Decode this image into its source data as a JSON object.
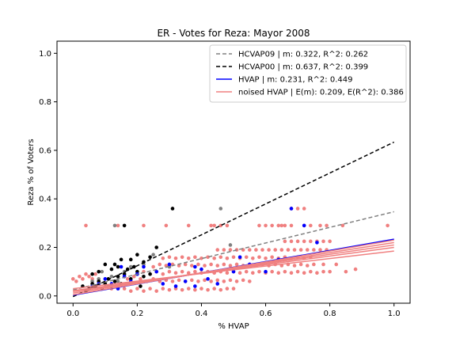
{
  "chart_data": {
    "type": "scatter",
    "title": "ER - Votes for Reza: Mayor 2008",
    "xlabel": "% HVAP",
    "ylabel": "Reza % of Voters",
    "xlim": [
      -0.05,
      1.05
    ],
    "ylim": [
      -0.03,
      1.05
    ],
    "xticks": [
      "0.0",
      "0.2",
      "0.4",
      "0.6",
      "0.8",
      "1.0"
    ],
    "yticks": [
      "0.0",
      "0.2",
      "0.4",
      "0.6",
      "0.8",
      "1.0"
    ],
    "xtick_values": [
      0.0,
      0.2,
      0.4,
      0.6,
      0.8,
      1.0
    ],
    "ytick_values": [
      0.0,
      0.2,
      0.4,
      0.6,
      0.8,
      1.0
    ],
    "grid": false,
    "legend_placement": "top-right",
    "legend": [
      {
        "label": "HCVAP09 | m: 0.322, R^2: 0.262",
        "color": "#808080",
        "style": "dashed"
      },
      {
        "label": "HCVAP00 | m: 0.637, R^2: 0.399",
        "color": "#000000",
        "style": "dashed"
      },
      {
        "label": "HVAP | m: 0.231, R^2: 0.449",
        "color": "#0000ff",
        "style": "solid"
      },
      {
        "label": "noised HVAP | E(m): 0.209, E(R^2): 0.386",
        "color": "#f08080",
        "style": "solid"
      }
    ],
    "lines": [
      {
        "name": "HCVAP09 | m: 0.322, R^2: 0.262",
        "color": "#808080",
        "style": "dashed",
        "x": [
          0.0,
          1.0
        ],
        "y": [
          0.025,
          0.347
        ]
      },
      {
        "name": "HCVAP00 | m: 0.637, R^2: 0.399",
        "color": "#000000",
        "style": "dashed",
        "x": [
          0.0,
          1.0
        ],
        "y": [
          -0.003,
          0.634
        ]
      },
      {
        "name": "HVAP | m: 0.231, R^2: 0.449",
        "color": "#0000ff",
        "style": "solid",
        "x": [
          0.0,
          1.0
        ],
        "y": [
          0.003,
          0.234
        ]
      },
      {
        "name": "noised HVAP 1",
        "color": "#f08080",
        "style": "solid",
        "x": [
          0.0,
          1.0
        ],
        "y": [
          0.005,
          0.23
        ]
      },
      {
        "name": "noised HVAP 2",
        "color": "#f08080",
        "style": "solid",
        "x": [
          0.0,
          1.0
        ],
        "y": [
          0.012,
          0.22
        ]
      },
      {
        "name": "noised HVAP 3",
        "color": "#f08080",
        "style": "solid",
        "x": [
          0.0,
          1.0
        ],
        "y": [
          0.018,
          0.21
        ]
      },
      {
        "name": "noised HVAP 4",
        "color": "#f08080",
        "style": "solid",
        "x": [
          0.0,
          1.0
        ],
        "y": [
          0.022,
          0.2
        ]
      },
      {
        "name": "noised HVAP 5",
        "color": "#f08080",
        "style": "solid",
        "x": [
          0.0,
          1.0
        ],
        "y": [
          0.03,
          0.185
        ]
      }
    ],
    "scatter_series": [
      {
        "name": "noised HVAP points",
        "color": "#f08080",
        "points": [
          [
            0.0,
            0.07
          ],
          [
            0.01,
            0.06
          ],
          [
            0.02,
            0.08
          ],
          [
            0.03,
            0.07
          ],
          [
            0.04,
            0.09
          ],
          [
            0.05,
            0.08
          ],
          [
            0.06,
            0.07
          ],
          [
            0.07,
            0.09
          ],
          [
            0.08,
            0.06
          ],
          [
            0.1,
            0.05
          ],
          [
            0.12,
            0.03
          ],
          [
            0.14,
            0.04
          ],
          [
            0.16,
            0.03
          ],
          [
            0.18,
            0.02
          ],
          [
            0.2,
            0.03
          ],
          [
            0.22,
            0.02
          ],
          [
            0.24,
            0.03
          ],
          [
            0.26,
            0.02
          ],
          [
            0.28,
            0.03
          ],
          [
            0.3,
            0.025
          ],
          [
            0.32,
            0.03
          ],
          [
            0.34,
            0.025
          ],
          [
            0.36,
            0.03
          ],
          [
            0.38,
            0.025
          ],
          [
            0.4,
            0.03
          ],
          [
            0.42,
            0.025
          ],
          [
            0.44,
            0.03
          ],
          [
            0.46,
            0.025
          ],
          [
            0.48,
            0.03
          ],
          [
            0.5,
            0.03
          ],
          [
            0.17,
            0.07
          ],
          [
            0.19,
            0.08
          ],
          [
            0.21,
            0.07
          ],
          [
            0.23,
            0.06
          ],
          [
            0.25,
            0.07
          ],
          [
            0.27,
            0.06
          ],
          [
            0.29,
            0.065
          ],
          [
            0.31,
            0.06
          ],
          [
            0.33,
            0.065
          ],
          [
            0.35,
            0.06
          ],
          [
            0.37,
            0.065
          ],
          [
            0.39,
            0.06
          ],
          [
            0.41,
            0.065
          ],
          [
            0.43,
            0.06
          ],
          [
            0.45,
            0.065
          ],
          [
            0.47,
            0.06
          ],
          [
            0.49,
            0.065
          ],
          [
            0.51,
            0.06
          ],
          [
            0.53,
            0.065
          ],
          [
            0.55,
            0.06
          ],
          [
            0.2,
            0.09
          ],
          [
            0.22,
            0.1
          ],
          [
            0.24,
            0.09
          ],
          [
            0.26,
            0.1
          ],
          [
            0.28,
            0.09
          ],
          [
            0.3,
            0.1
          ],
          [
            0.32,
            0.095
          ],
          [
            0.34,
            0.1
          ],
          [
            0.36,
            0.095
          ],
          [
            0.38,
            0.1
          ],
          [
            0.4,
            0.095
          ],
          [
            0.42,
            0.1
          ],
          [
            0.44,
            0.095
          ],
          [
            0.46,
            0.1
          ],
          [
            0.48,
            0.095
          ],
          [
            0.5,
            0.1
          ],
          [
            0.52,
            0.095
          ],
          [
            0.54,
            0.1
          ],
          [
            0.56,
            0.095
          ],
          [
            0.58,
            0.1
          ],
          [
            0.6,
            0.095
          ],
          [
            0.62,
            0.1
          ],
          [
            0.64,
            0.095
          ],
          [
            0.66,
            0.1
          ],
          [
            0.68,
            0.095
          ],
          [
            0.7,
            0.1
          ],
          [
            0.72,
            0.095
          ],
          [
            0.74,
            0.1
          ],
          [
            0.76,
            0.095
          ],
          [
            0.78,
            0.1
          ],
          [
            0.25,
            0.12
          ],
          [
            0.27,
            0.13
          ],
          [
            0.29,
            0.125
          ],
          [
            0.31,
            0.13
          ],
          [
            0.33,
            0.125
          ],
          [
            0.35,
            0.13
          ],
          [
            0.37,
            0.125
          ],
          [
            0.39,
            0.13
          ],
          [
            0.41,
            0.125
          ],
          [
            0.43,
            0.13
          ],
          [
            0.45,
            0.125
          ],
          [
            0.47,
            0.13
          ],
          [
            0.49,
            0.125
          ],
          [
            0.51,
            0.13
          ],
          [
            0.53,
            0.125
          ],
          [
            0.55,
            0.13
          ],
          [
            0.57,
            0.125
          ],
          [
            0.59,
            0.13
          ],
          [
            0.61,
            0.125
          ],
          [
            0.63,
            0.13
          ],
          [
            0.65,
            0.125
          ],
          [
            0.67,
            0.13
          ],
          [
            0.69,
            0.125
          ],
          [
            0.71,
            0.13
          ],
          [
            0.73,
            0.125
          ],
          [
            0.75,
            0.13
          ],
          [
            0.28,
            0.155
          ],
          [
            0.3,
            0.16
          ],
          [
            0.32,
            0.155
          ],
          [
            0.34,
            0.16
          ],
          [
            0.36,
            0.155
          ],
          [
            0.38,
            0.16
          ],
          [
            0.4,
            0.155
          ],
          [
            0.42,
            0.16
          ],
          [
            0.44,
            0.155
          ],
          [
            0.46,
            0.16
          ],
          [
            0.48,
            0.155
          ],
          [
            0.5,
            0.16
          ],
          [
            0.52,
            0.155
          ],
          [
            0.54,
            0.16
          ],
          [
            0.56,
            0.155
          ],
          [
            0.58,
            0.16
          ],
          [
            0.6,
            0.155
          ],
          [
            0.62,
            0.16
          ],
          [
            0.64,
            0.155
          ],
          [
            0.66,
            0.16
          ],
          [
            0.68,
            0.155
          ],
          [
            0.7,
            0.16
          ],
          [
            0.72,
            0.155
          ],
          [
            0.74,
            0.16
          ],
          [
            0.45,
            0.19
          ],
          [
            0.47,
            0.19
          ],
          [
            0.49,
            0.19
          ],
          [
            0.51,
            0.19
          ],
          [
            0.53,
            0.19
          ],
          [
            0.55,
            0.19
          ],
          [
            0.57,
            0.19
          ],
          [
            0.59,
            0.19
          ],
          [
            0.61,
            0.19
          ],
          [
            0.63,
            0.19
          ],
          [
            0.65,
            0.19
          ],
          [
            0.67,
            0.19
          ],
          [
            0.69,
            0.19
          ],
          [
            0.71,
            0.19
          ],
          [
            0.73,
            0.19
          ],
          [
            0.75,
            0.19
          ],
          [
            0.77,
            0.19
          ],
          [
            0.79,
            0.19
          ],
          [
            0.66,
            0.225
          ],
          [
            0.68,
            0.225
          ],
          [
            0.7,
            0.225
          ],
          [
            0.72,
            0.225
          ],
          [
            0.74,
            0.225
          ],
          [
            0.76,
            0.225
          ],
          [
            0.78,
            0.225
          ],
          [
            0.8,
            0.225
          ],
          [
            0.04,
            0.29
          ],
          [
            0.14,
            0.29
          ],
          [
            0.22,
            0.29
          ],
          [
            0.29,
            0.29
          ],
          [
            0.36,
            0.29
          ],
          [
            0.43,
            0.29
          ],
          [
            0.44,
            0.29
          ],
          [
            0.46,
            0.29
          ],
          [
            0.48,
            0.29
          ],
          [
            0.58,
            0.29
          ],
          [
            0.6,
            0.29
          ],
          [
            0.62,
            0.29
          ],
          [
            0.64,
            0.29
          ],
          [
            0.65,
            0.29
          ],
          [
            0.66,
            0.29
          ],
          [
            0.68,
            0.29
          ],
          [
            0.72,
            0.29
          ],
          [
            0.74,
            0.29
          ],
          [
            0.77,
            0.29
          ],
          [
            0.79,
            0.29
          ],
          [
            0.84,
            0.29
          ],
          [
            0.98,
            0.29
          ],
          [
            0.68,
            0.36
          ],
          [
            0.7,
            0.36
          ],
          [
            0.72,
            0.36
          ],
          [
            0.78,
            0.13
          ],
          [
            0.8,
            0.1
          ],
          [
            0.82,
            0.13
          ],
          [
            0.85,
            0.1
          ],
          [
            0.88,
            0.11
          ]
        ]
      },
      {
        "name": "HCVAP09 points",
        "color": "#808080",
        "points": [
          [
            0.06,
            0.06
          ],
          [
            0.08,
            0.07
          ],
          [
            0.1,
            0.05
          ],
          [
            0.12,
            0.08
          ],
          [
            0.14,
            0.06
          ],
          [
            0.16,
            0.1
          ],
          [
            0.18,
            0.12
          ],
          [
            0.2,
            0.09
          ],
          [
            0.22,
            0.13
          ],
          [
            0.13,
            0.29
          ],
          [
            0.25,
            0.17
          ],
          [
            0.3,
            0.12
          ],
          [
            0.46,
            0.36
          ],
          [
            0.49,
            0.21
          ],
          [
            0.09,
            0.1
          ],
          [
            0.11,
            0.04
          ],
          [
            0.15,
            0.05
          ]
        ]
      },
      {
        "name": "HCVAP00 points",
        "color": "#000000",
        "points": [
          [
            0.04,
            0.02
          ],
          [
            0.05,
            0.03
          ],
          [
            0.06,
            0.05
          ],
          [
            0.07,
            0.04
          ],
          [
            0.08,
            0.06
          ],
          [
            0.09,
            0.03
          ],
          [
            0.1,
            0.05
          ],
          [
            0.11,
            0.07
          ],
          [
            0.12,
            0.04
          ],
          [
            0.13,
            0.06
          ],
          [
            0.14,
            0.08
          ],
          [
            0.15,
            0.05
          ],
          [
            0.16,
            0.09
          ],
          [
            0.17,
            0.11
          ],
          [
            0.18,
            0.07
          ],
          [
            0.19,
            0.12
          ],
          [
            0.2,
            0.1
          ],
          [
            0.21,
            0.04
          ],
          [
            0.22,
            0.14
          ],
          [
            0.24,
            0.09
          ],
          [
            0.26,
            0.2
          ],
          [
            0.31,
            0.36
          ],
          [
            0.16,
            0.29
          ],
          [
            0.13,
            0.13
          ],
          [
            0.15,
            0.15
          ],
          [
            0.18,
            0.15
          ],
          [
            0.2,
            0.17
          ],
          [
            0.06,
            0.09
          ],
          [
            0.1,
            0.13
          ],
          [
            0.12,
            0.11
          ],
          [
            0.03,
            0.04
          ],
          [
            0.08,
            0.1
          ],
          [
            0.14,
            0.12
          ],
          [
            0.22,
            0.08
          ],
          [
            0.24,
            0.16
          ]
        ]
      },
      {
        "name": "HVAP points",
        "color": "#0000ff",
        "points": [
          [
            0.06,
            0.04
          ],
          [
            0.08,
            0.05
          ],
          [
            0.1,
            0.07
          ],
          [
            0.12,
            0.05
          ],
          [
            0.14,
            0.03
          ],
          [
            0.16,
            0.08
          ],
          [
            0.18,
            0.06
          ],
          [
            0.2,
            0.09
          ],
          [
            0.22,
            0.12
          ],
          [
            0.26,
            0.1
          ],
          [
            0.3,
            0.13
          ],
          [
            0.32,
            0.04
          ],
          [
            0.35,
            0.06
          ],
          [
            0.38,
            0.12
          ],
          [
            0.4,
            0.11
          ],
          [
            0.42,
            0.07
          ],
          [
            0.45,
            0.05
          ],
          [
            0.5,
            0.1
          ],
          [
            0.52,
            0.16
          ],
          [
            0.55,
            0.13
          ],
          [
            0.6,
            0.1
          ],
          [
            0.64,
            0.15
          ],
          [
            0.68,
            0.36
          ],
          [
            0.72,
            0.29
          ],
          [
            0.76,
            0.22
          ],
          [
            0.38,
            0.04
          ],
          [
            0.28,
            0.05
          ],
          [
            0.15,
            0.12
          ]
        ]
      }
    ]
  }
}
